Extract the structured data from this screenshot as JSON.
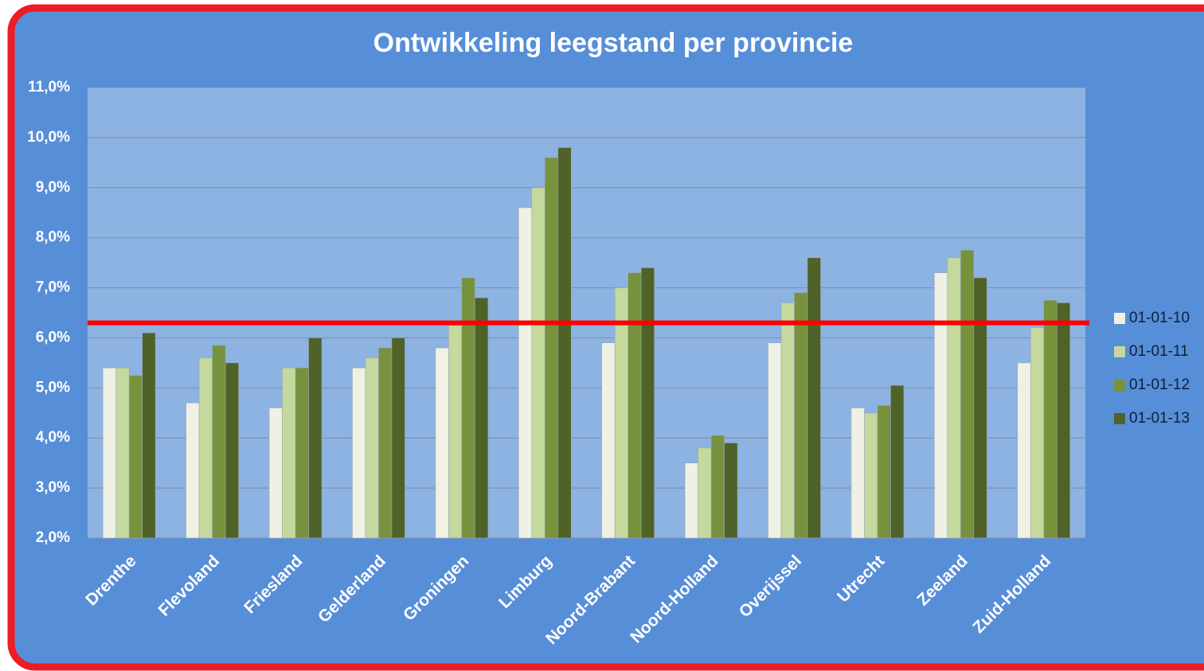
{
  "chart_data": {
    "type": "bar",
    "title": "Ontwikkeling leegstand per provincie",
    "categories": [
      "Drenthe",
      "Flevoland",
      "Friesland",
      "Gelderland",
      "Groningen",
      "Limburg",
      "Noord-Brabant",
      "Noord-Holland",
      "Overijssel",
      "Utrecht",
      "Zeeland",
      "Zuid-Holland"
    ],
    "series": [
      {
        "name": "01-01-10",
        "color": "#eef1e3",
        "values": [
          5.4,
          4.7,
          4.6,
          5.4,
          5.8,
          8.6,
          5.9,
          3.5,
          5.9,
          4.6,
          7.3,
          5.5
        ]
      },
      {
        "name": "01-01-11",
        "color": "#c5d89d",
        "values": [
          5.4,
          5.6,
          5.4,
          5.6,
          6.25,
          9.0,
          7.0,
          3.8,
          6.7,
          4.5,
          7.6,
          6.2
        ]
      },
      {
        "name": "01-01-12",
        "color": "#77923c",
        "values": [
          5.25,
          5.85,
          5.4,
          5.8,
          7.2,
          9.6,
          7.3,
          4.05,
          6.9,
          4.65,
          7.75,
          6.75
        ]
      },
      {
        "name": "01-01-13",
        "color": "#4f6228",
        "values": [
          6.1,
          5.5,
          6.0,
          6.0,
          6.8,
          9.8,
          7.4,
          3.9,
          7.6,
          5.05,
          7.2,
          6.7
        ]
      }
    ],
    "ylim": [
      2,
      11
    ],
    "yticks": [
      {
        "value": 2,
        "label": "2,0%"
      },
      {
        "value": 3,
        "label": "3,0%"
      },
      {
        "value": 4,
        "label": "4,0%"
      },
      {
        "value": 5,
        "label": "5,0%"
      },
      {
        "value": 6,
        "label": "6,0%"
      },
      {
        "value": 7,
        "label": "7,0%"
      },
      {
        "value": 8,
        "label": "8,0%"
      },
      {
        "value": 9,
        "label": "9,0%"
      },
      {
        "value": 10,
        "label": "10,0%"
      },
      {
        "value": 11,
        "label": "11,0%"
      }
    ],
    "grid": true,
    "legend": "right",
    "reference_line": {
      "value": 6.3,
      "color": "#ff0000"
    }
  }
}
